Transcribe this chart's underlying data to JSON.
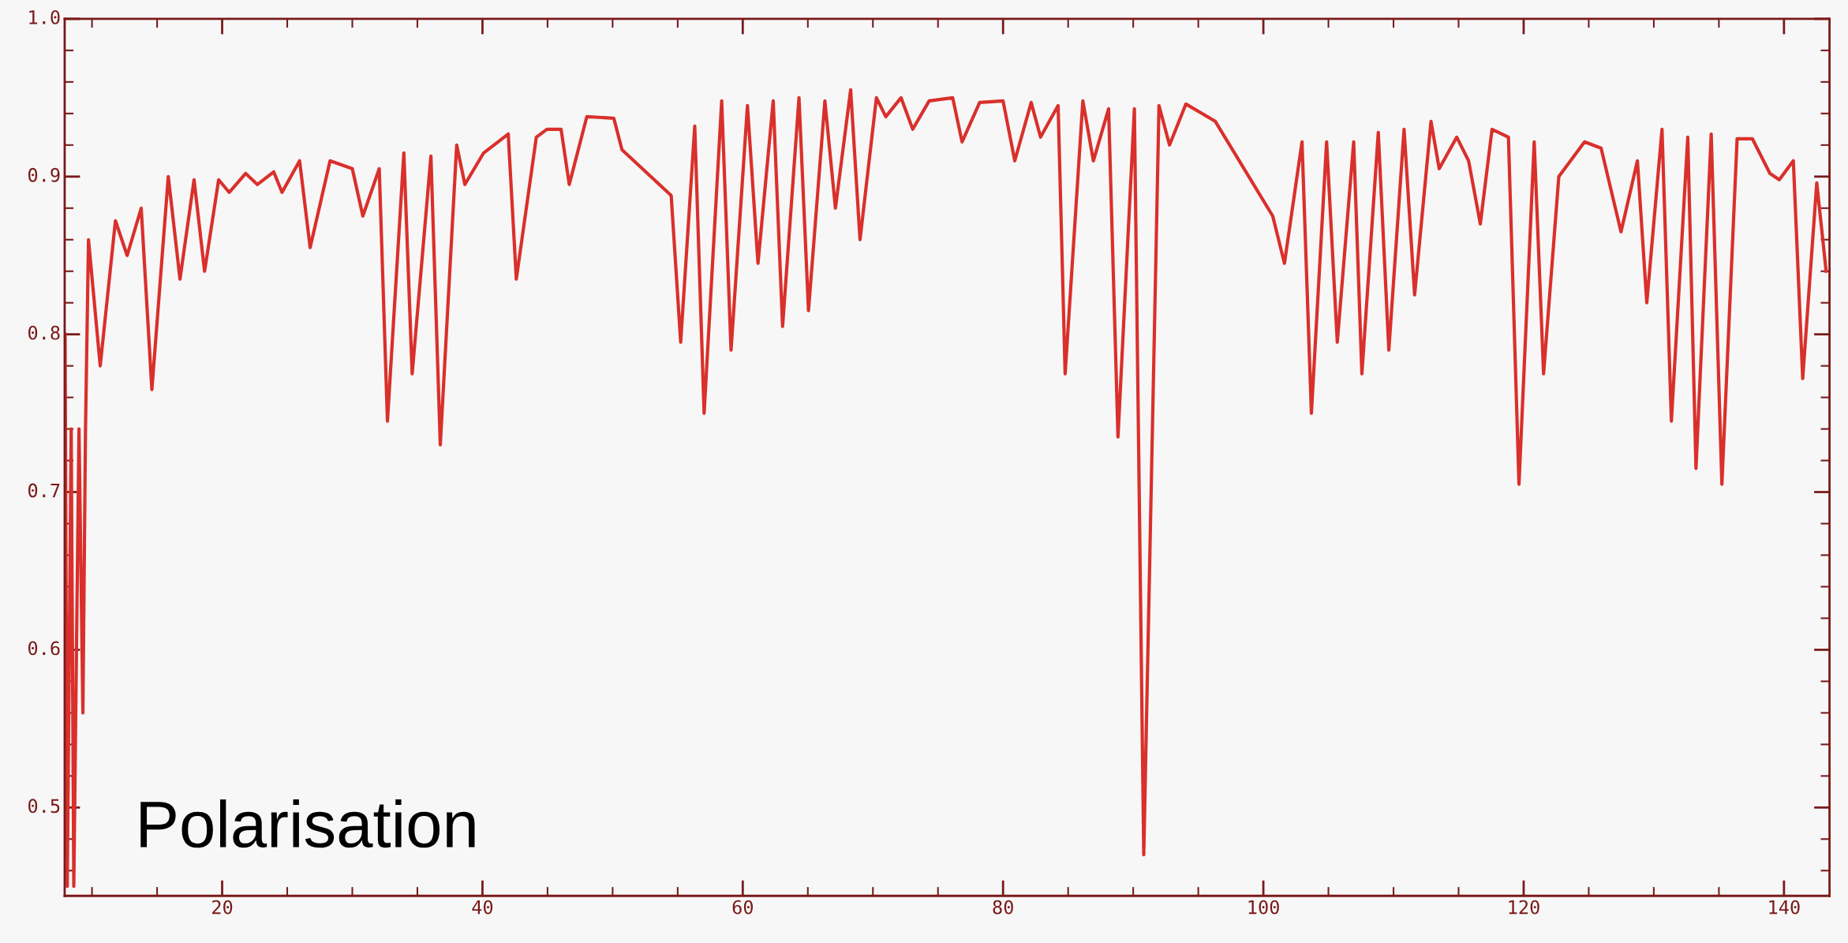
{
  "chart_data": {
    "type": "line",
    "annotations": [
      "Polarisation"
    ],
    "series": [
      {
        "color": "#d9302c",
        "x": [
          7.93,
          8.1,
          8.4,
          8.6,
          9.0,
          9.3,
          9.5,
          9.73,
          10.63,
          11.8,
          12.7,
          13.78,
          14.6,
          15.86,
          16.76,
          17.84,
          18.65,
          19.73,
          20.54,
          21.8,
          22.7,
          23.96,
          24.6,
          25.95,
          26.76,
          28.29,
          30.0,
          30.81,
          32.07,
          32.7,
          33.96,
          34.6,
          36.04,
          36.76,
          38.02,
          38.65,
          40.09,
          41.98,
          42.6,
          44.14,
          44.95,
          46.04,
          46.67,
          48.02,
          50.09,
          50.72,
          54.5,
          55.23,
          56.31,
          57.03,
          58.38,
          59.1,
          60.36,
          61.17,
          62.34,
          63.06,
          64.32,
          65.05,
          66.31,
          67.12,
          68.29,
          69.01,
          70.27,
          70.99,
          72.16,
          73.06,
          74.32,
          76.13,
          76.85,
          78.2,
          80.0,
          80.9,
          82.16,
          82.88,
          84.23,
          84.77,
          86.13,
          86.94,
          88.11,
          88.83,
          90.09,
          90.81,
          91.98,
          92.79,
          94.05,
          96.31,
          100.72,
          101.62,
          102.97,
          103.69,
          104.86,
          105.68,
          106.94,
          107.57,
          108.83,
          109.64,
          110.81,
          111.62,
          112.88,
          113.51,
          114.86,
          115.77,
          116.67,
          117.57,
          118.83,
          119.64,
          120.81,
          121.53,
          122.7,
          124.68,
          125.95,
          127.48,
          128.74,
          129.46,
          130.63,
          131.35,
          132.61,
          133.24,
          134.41,
          135.23,
          136.4,
          137.57,
          138.92,
          139.64,
          140.72,
          141.44,
          142.52,
          143.24
        ],
        "values": [
          0.8,
          0.45,
          0.74,
          0.45,
          0.74,
          0.56,
          0.74,
          0.86,
          0.78,
          0.872,
          0.85,
          0.88,
          0.765,
          0.9,
          0.835,
          0.898,
          0.84,
          0.898,
          0.89,
          0.902,
          0.895,
          0.903,
          0.89,
          0.91,
          0.855,
          0.91,
          0.905,
          0.875,
          0.905,
          0.745,
          0.915,
          0.775,
          0.913,
          0.73,
          0.92,
          0.895,
          0.915,
          0.927,
          0.835,
          0.925,
          0.93,
          0.93,
          0.895,
          0.938,
          0.937,
          0.917,
          0.888,
          0.795,
          0.932,
          0.75,
          0.948,
          0.79,
          0.945,
          0.845,
          0.948,
          0.805,
          0.95,
          0.815,
          0.948,
          0.88,
          0.955,
          0.86,
          0.95,
          0.938,
          0.95,
          0.93,
          0.948,
          0.95,
          0.922,
          0.947,
          0.948,
          0.91,
          0.947,
          0.925,
          0.945,
          0.775,
          0.948,
          0.91,
          0.943,
          0.735,
          0.943,
          0.47,
          0.945,
          0.92,
          0.946,
          0.935,
          0.875,
          0.845,
          0.922,
          0.75,
          0.922,
          0.795,
          0.922,
          0.775,
          0.928,
          0.79,
          0.93,
          0.825,
          0.935,
          0.905,
          0.925,
          0.91,
          0.87,
          0.93,
          0.925,
          0.705,
          0.922,
          0.775,
          0.9,
          0.922,
          0.918,
          0.865,
          0.91,
          0.82,
          0.93,
          0.745,
          0.925,
          0.715,
          0.927,
          0.705,
          0.924,
          0.924,
          0.902,
          0.898,
          0.91,
          0.772,
          0.896,
          0.84
        ]
      }
    ],
    "xlim": [
      7.9,
      143.5
    ],
    "ylim": [
      0.444,
      1.0
    ],
    "xticks": [
      20,
      40,
      60,
      80,
      100,
      120,
      140
    ],
    "yticks": [
      0.5,
      0.6,
      0.7,
      0.8,
      0.9,
      {
        "value": 1.0,
        "label": "1.0"
      }
    ],
    "grid": false,
    "legend": false,
    "marker": "none",
    "line_style": "solid"
  }
}
